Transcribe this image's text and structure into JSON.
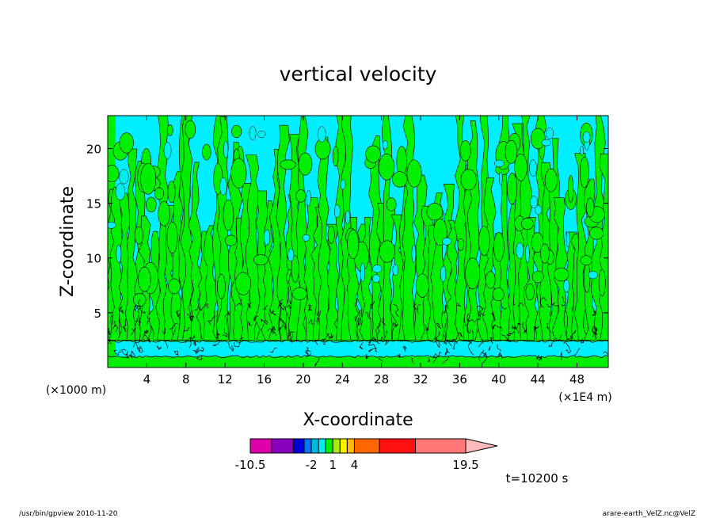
{
  "chart_data": {
    "type": "heatmap",
    "title": "vertical velocity",
    "xlabel": "X-coordinate",
    "ylabel": "Z-coordinate",
    "x_unit_left": "(×1000 m)",
    "x_unit_right": "(×1E4 m)",
    "x_ticks": [
      4,
      8,
      12,
      16,
      20,
      24,
      28,
      32,
      36,
      40,
      44,
      48
    ],
    "y_ticks": [
      5,
      10,
      15,
      20
    ],
    "xlim": [
      0,
      51.2
    ],
    "ylim": [
      0,
      23
    ],
    "contour_note": "alternating cyan/green shading with dense black contour lines; vertical plume-like structures, strong turbulence below z=5",
    "colorbar": {
      "tick_labels": [
        "-10.5",
        "-2",
        "1",
        "4",
        "19.5"
      ],
      "levels": [
        -10.5,
        -7.5,
        -4.5,
        -3,
        -2,
        -1,
        0,
        1,
        2,
        3,
        4,
        7.5,
        12.5,
        19.5
      ],
      "colors": [
        "#dd00aa",
        "#8800bb",
        "#0000dd",
        "#0077ff",
        "#00bbdd",
        "#00eeee",
        "#00ee00",
        "#aaee00",
        "#ffee00",
        "#ffbb00",
        "#ff6600",
        "#ff1111",
        "#ff7777"
      ],
      "overflow_color": "#ffbbbb"
    },
    "time_label": "t=10200 s"
  },
  "footer": {
    "left": "/usr/bin/gpview   2010-11-20",
    "right": "arare-earth_VelZ.nc@VelZ"
  }
}
